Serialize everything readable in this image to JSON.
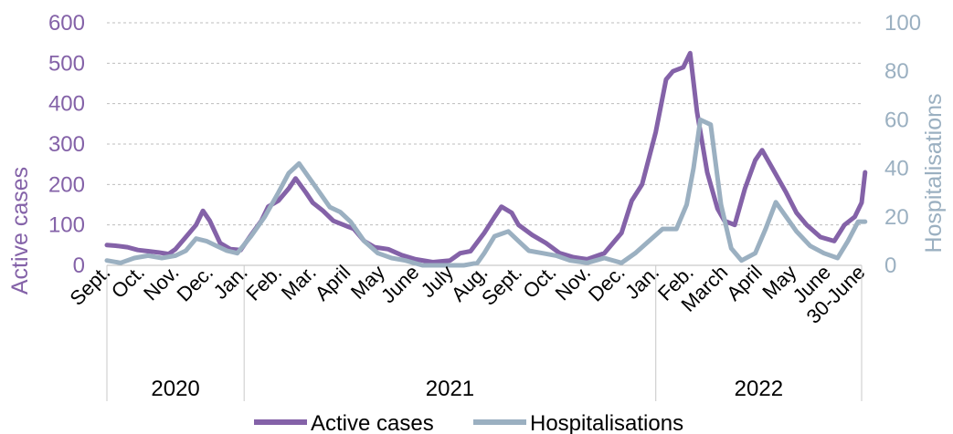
{
  "chart_data": {
    "type": "line",
    "title": "",
    "ylabel": "Active cases",
    "y2label": "Hospitalisations",
    "ylim": [
      0,
      600
    ],
    "y2lim": [
      0,
      100
    ],
    "yticks": [
      "0",
      "100",
      "200",
      "300",
      "400",
      "500",
      "600"
    ],
    "y2ticks": [
      "0",
      "20",
      "40",
      "60",
      "80",
      "100"
    ],
    "grid": true,
    "legend": "bottom",
    "month_labels": [
      "Sept.",
      "Oct.",
      "Nov.",
      "Dec.",
      "Jan.",
      "Feb.",
      "Mar.",
      "April",
      "May",
      "June",
      "July",
      "Aug.",
      "Sept.",
      "Oct.",
      "Nov.",
      "Dec.",
      "Jan.",
      "Feb.",
      "March",
      "April",
      "May",
      "June",
      "30-June"
    ],
    "years": [
      {
        "label": "2020",
        "start": 0,
        "end": 4
      },
      {
        "label": "2021",
        "start": 4,
        "end": 16
      },
      {
        "label": "2022",
        "start": 16,
        "end": 22
      }
    ],
    "series": [
      {
        "name": "Active cases",
        "axis": "left",
        "color": "#8462a8",
        "values": [
          [
            0.0,
            50
          ],
          [
            0.3,
            48
          ],
          [
            0.6,
            45
          ],
          [
            0.9,
            38
          ],
          [
            1.2,
            35
          ],
          [
            1.5,
            32
          ],
          [
            1.8,
            28
          ],
          [
            2.0,
            40
          ],
          [
            2.3,
            70
          ],
          [
            2.6,
            100
          ],
          [
            2.8,
            135
          ],
          [
            3.0,
            110
          ],
          [
            3.3,
            55
          ],
          [
            3.6,
            40
          ],
          [
            3.9,
            38
          ],
          [
            4.2,
            75
          ],
          [
            4.5,
            110
          ],
          [
            4.7,
            145
          ],
          [
            5.0,
            160
          ],
          [
            5.3,
            190
          ],
          [
            5.5,
            215
          ],
          [
            5.8,
            180
          ],
          [
            6.0,
            155
          ],
          [
            6.3,
            135
          ],
          [
            6.6,
            110
          ],
          [
            6.9,
            100
          ],
          [
            7.2,
            90
          ],
          [
            7.5,
            60
          ],
          [
            7.8,
            45
          ],
          [
            8.2,
            40
          ],
          [
            8.6,
            25
          ],
          [
            9.0,
            15
          ],
          [
            9.5,
            8
          ],
          [
            10.0,
            12
          ],
          [
            10.3,
            30
          ],
          [
            10.6,
            35
          ],
          [
            11.0,
            80
          ],
          [
            11.3,
            120
          ],
          [
            11.5,
            145
          ],
          [
            11.8,
            130
          ],
          [
            12.0,
            100
          ],
          [
            12.4,
            75
          ],
          [
            12.8,
            55
          ],
          [
            13.2,
            30
          ],
          [
            13.6,
            20
          ],
          [
            14.0,
            15
          ],
          [
            14.5,
            30
          ],
          [
            15.0,
            80
          ],
          [
            15.3,
            160
          ],
          [
            15.6,
            200
          ],
          [
            16.0,
            330
          ],
          [
            16.3,
            460
          ],
          [
            16.5,
            480
          ],
          [
            16.8,
            490
          ],
          [
            17.0,
            525
          ],
          [
            17.2,
            380
          ],
          [
            17.5,
            230
          ],
          [
            17.8,
            140
          ],
          [
            18.0,
            110
          ],
          [
            18.3,
            100
          ],
          [
            18.6,
            190
          ],
          [
            18.9,
            260
          ],
          [
            19.1,
            285
          ],
          [
            19.4,
            240
          ],
          [
            19.8,
            180
          ],
          [
            20.1,
            130
          ],
          [
            20.4,
            100
          ],
          [
            20.8,
            70
          ],
          [
            21.2,
            60
          ],
          [
            21.5,
            100
          ],
          [
            21.8,
            120
          ],
          [
            22.0,
            155
          ],
          [
            22.1,
            230
          ]
        ]
      },
      {
        "name": "Hospitalisations",
        "axis": "right",
        "color": "#9bb0c1",
        "values": [
          [
            0.0,
            2
          ],
          [
            0.4,
            1
          ],
          [
            0.8,
            3
          ],
          [
            1.2,
            4
          ],
          [
            1.6,
            3
          ],
          [
            2.0,
            4
          ],
          [
            2.3,
            6
          ],
          [
            2.6,
            11
          ],
          [
            2.9,
            10
          ],
          [
            3.2,
            8
          ],
          [
            3.5,
            6
          ],
          [
            3.8,
            5
          ],
          [
            4.2,
            12
          ],
          [
            4.6,
            20
          ],
          [
            5.0,
            30
          ],
          [
            5.3,
            38
          ],
          [
            5.6,
            42
          ],
          [
            5.9,
            36
          ],
          [
            6.2,
            30
          ],
          [
            6.5,
            24
          ],
          [
            6.8,
            22
          ],
          [
            7.1,
            18
          ],
          [
            7.5,
            10
          ],
          [
            7.9,
            5
          ],
          [
            8.3,
            3
          ],
          [
            8.7,
            2
          ],
          [
            9.2,
            0
          ],
          [
            9.8,
            0
          ],
          [
            10.4,
            0
          ],
          [
            10.8,
            1
          ],
          [
            11.0,
            5
          ],
          [
            11.3,
            12
          ],
          [
            11.7,
            14
          ],
          [
            12.0,
            10
          ],
          [
            12.3,
            6
          ],
          [
            12.7,
            5
          ],
          [
            13.1,
            4
          ],
          [
            13.5,
            2
          ],
          [
            14.0,
            1
          ],
          [
            14.5,
            3
          ],
          [
            15.0,
            1
          ],
          [
            15.4,
            5
          ],
          [
            15.8,
            10
          ],
          [
            16.2,
            15
          ],
          [
            16.6,
            15
          ],
          [
            16.9,
            25
          ],
          [
            17.1,
            40
          ],
          [
            17.3,
            60
          ],
          [
            17.6,
            58
          ],
          [
            17.9,
            25
          ],
          [
            18.2,
            7
          ],
          [
            18.5,
            2
          ],
          [
            18.9,
            5
          ],
          [
            19.2,
            15
          ],
          [
            19.5,
            26
          ],
          [
            19.8,
            20
          ],
          [
            20.1,
            14
          ],
          [
            20.5,
            8
          ],
          [
            20.9,
            5
          ],
          [
            21.3,
            3
          ],
          [
            21.6,
            10
          ],
          [
            21.9,
            18
          ],
          [
            22.1,
            18
          ]
        ]
      }
    ]
  }
}
